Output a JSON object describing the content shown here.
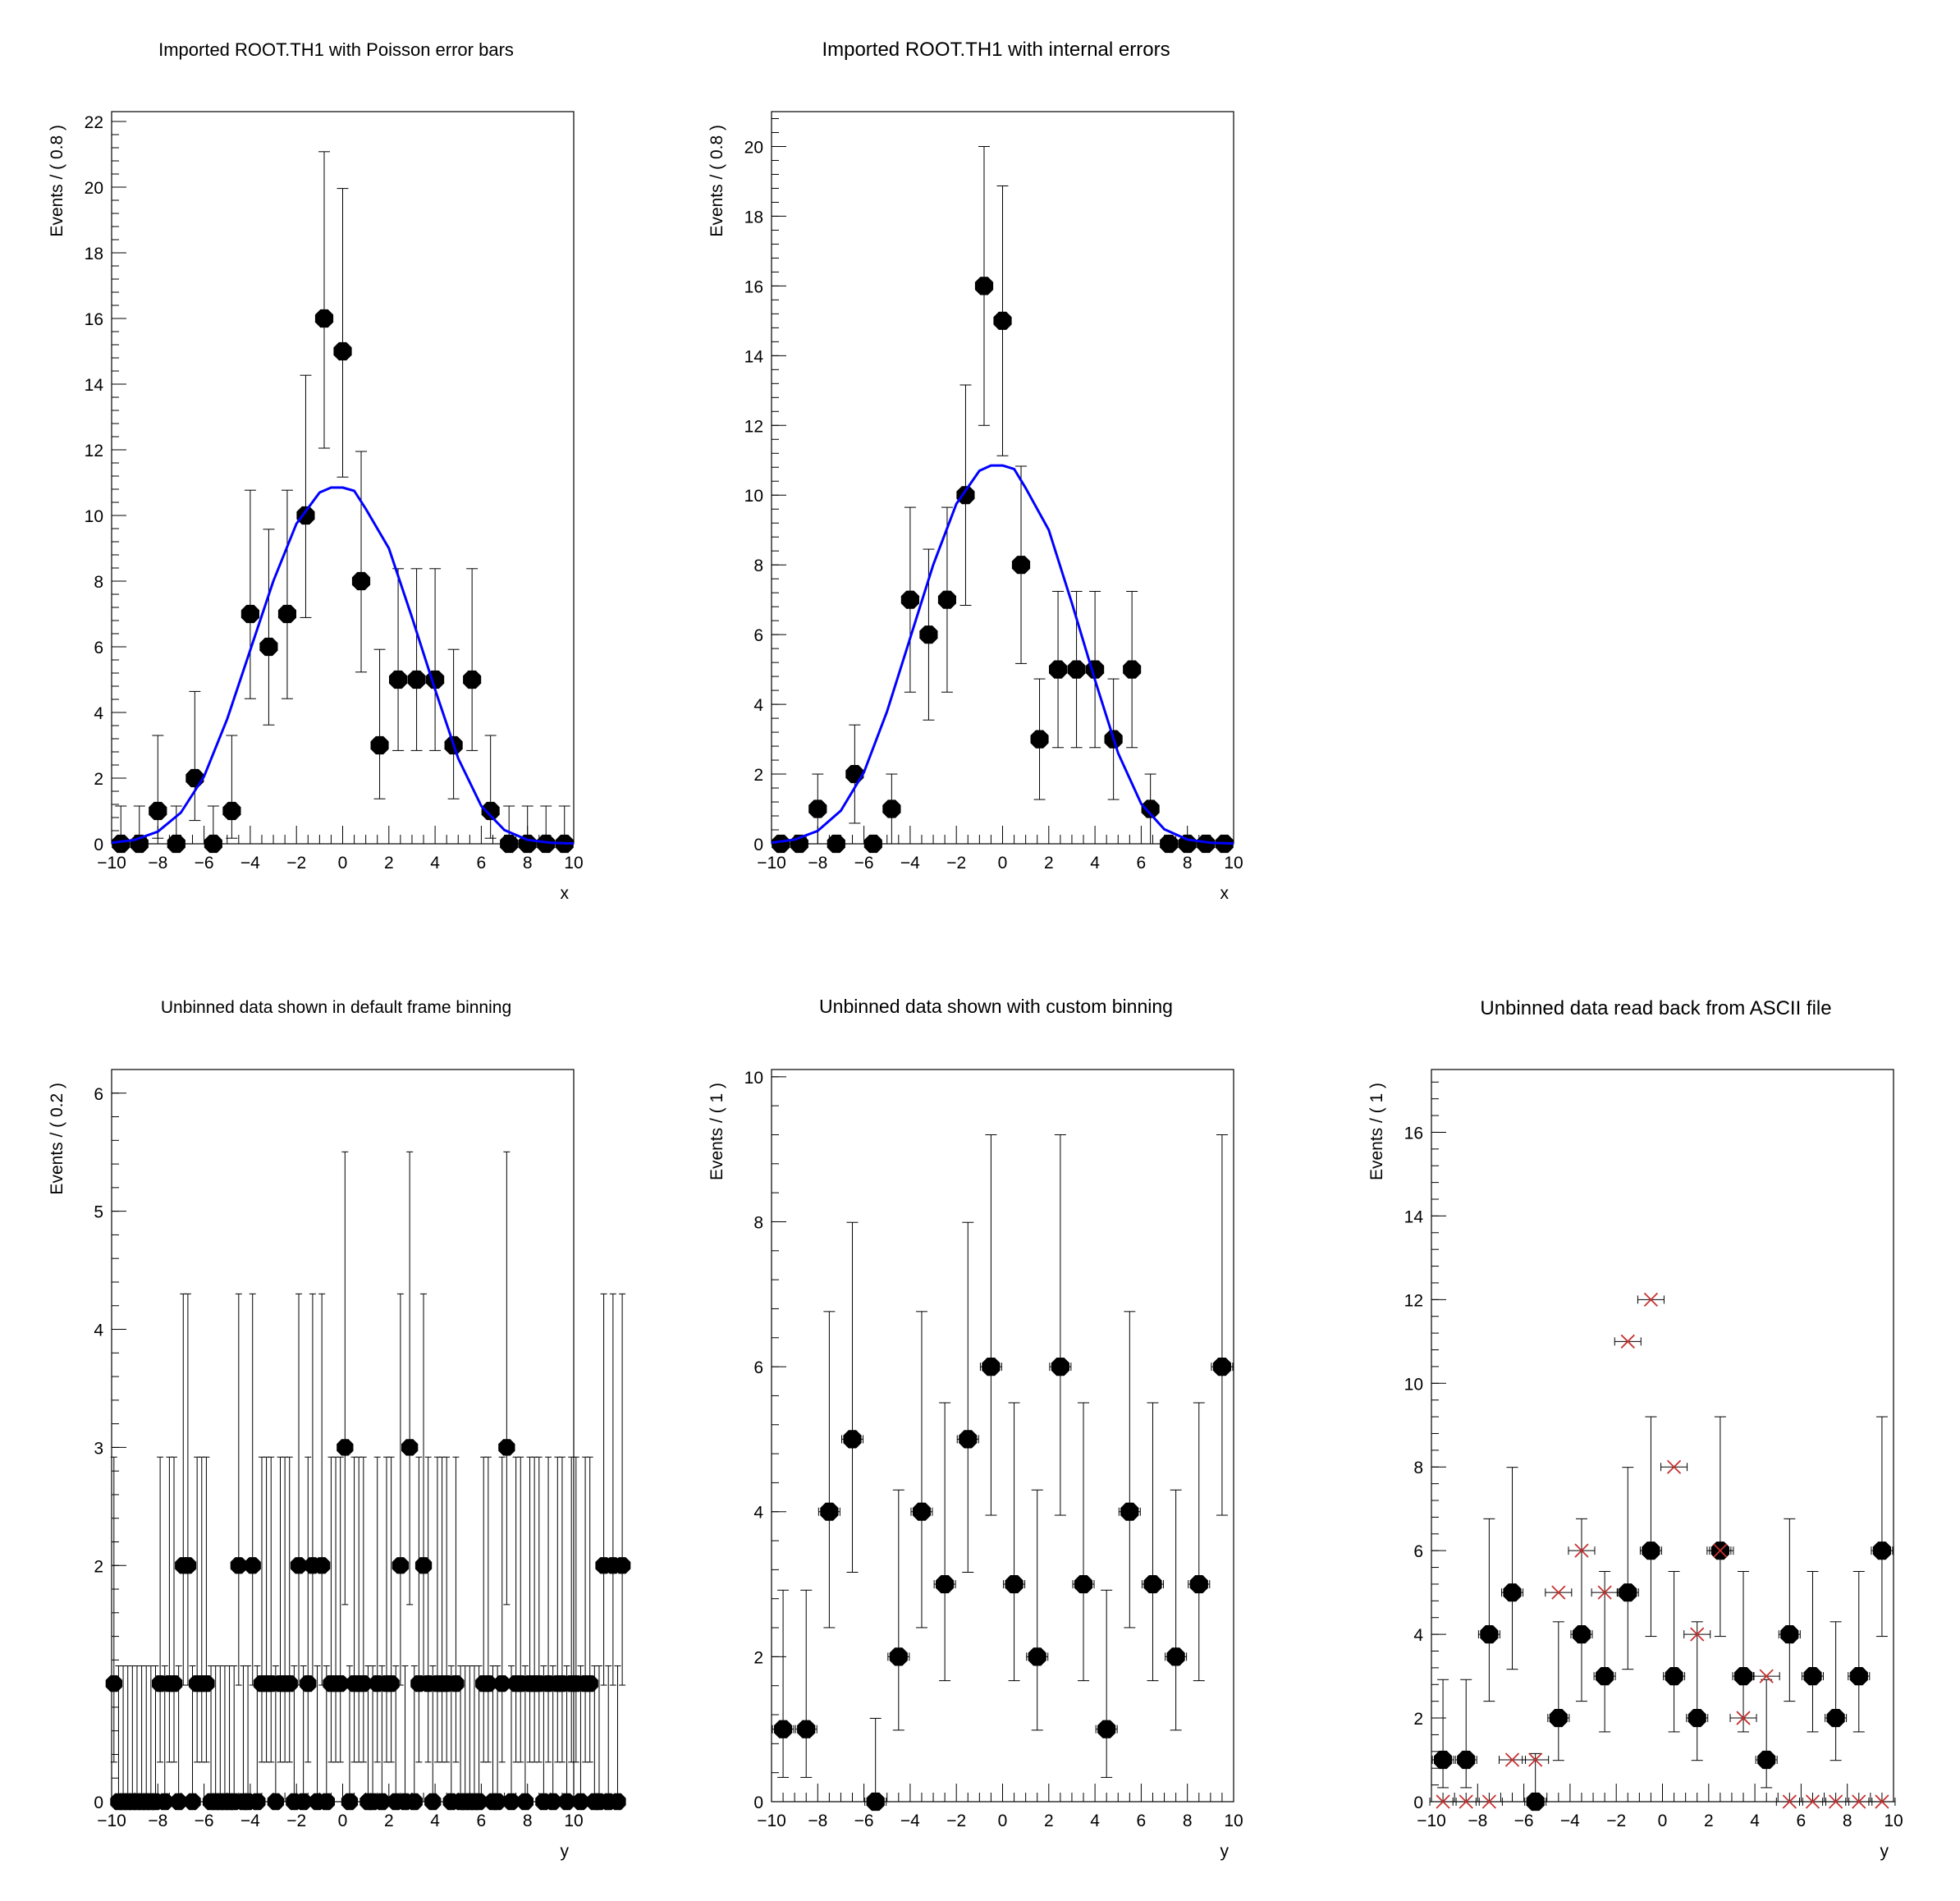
{
  "colors": {
    "curve": "#0000ff",
    "markers": "#000000",
    "cross_markers": "#c83232",
    "frame": "#000000"
  },
  "chart_data": [
    {
      "type": "scatter",
      "title": "Imported ROOT.TH1 with Poisson error bars",
      "xlabel": "x",
      "ylabel": "Events / ( 0.8 )",
      "xlim": [
        -10,
        10
      ],
      "ylim": [
        0,
        22.3
      ],
      "xticks": [
        -10,
        -8,
        -6,
        -4,
        -2,
        0,
        2,
        4,
        6,
        8,
        10
      ],
      "xtick_labels": [
        "−10",
        "−8",
        "−6",
        "−4",
        "−2",
        "0",
        "2",
        "4",
        "6",
        "8",
        "10"
      ],
      "yticks": [
        0,
        2,
        4,
        6,
        8,
        10,
        12,
        14,
        16,
        18,
        20,
        22
      ],
      "ytick_labels": [
        "0",
        "2",
        "4",
        "6",
        "8",
        "10",
        "12",
        "14",
        "16",
        "18",
        "20",
        "22"
      ],
      "series": [
        {
          "name": "data",
          "x": [
            -9.6,
            -8.8,
            -8.0,
            -7.2,
            -6.4,
            -5.6,
            -4.8,
            -4.0,
            -3.2,
            -2.4,
            -1.6,
            -0.8,
            0.0,
            0.8,
            1.6,
            2.4,
            3.2,
            4.0,
            4.8,
            5.6,
            6.4,
            7.2,
            8.0,
            8.8,
            9.6
          ],
          "y": [
            0,
            0,
            1,
            0,
            2,
            0,
            1,
            7,
            6,
            7,
            10,
            16,
            15,
            8,
            3,
            5,
            5,
            5,
            3,
            5,
            1,
            0,
            0,
            0,
            0
          ],
          "err_low": [
            0,
            0,
            0.83,
            0,
            1.29,
            0,
            0.83,
            2.58,
            2.38,
            2.58,
            3.11,
            3.95,
            3.83,
            2.77,
            1.63,
            2.16,
            2.16,
            2.16,
            1.63,
            2.16,
            0.83,
            0,
            0,
            0,
            0
          ],
          "err_high": [
            1.15,
            1.15,
            2.3,
            1.15,
            2.64,
            1.15,
            2.3,
            3.77,
            3.58,
            3.77,
            4.27,
            5.08,
            4.96,
            3.95,
            2.92,
            3.38,
            3.38,
            3.38,
            2.92,
            3.38,
            2.3,
            1.15,
            1.15,
            1.15,
            1.15
          ]
        },
        {
          "name": "gauss",
          "x": [
            -10,
            -9,
            -8,
            -7,
            -6,
            -5,
            -4,
            -3,
            -2,
            -1,
            -0.5,
            0,
            0.5,
            1,
            2,
            3,
            4,
            5,
            6,
            7,
            8,
            9,
            10
          ],
          "y": [
            0.03,
            0.12,
            0.37,
            0.95,
            2.05,
            3.8,
            5.9,
            8.0,
            9.75,
            10.7,
            10.85,
            10.85,
            10.75,
            10.2,
            9.0,
            6.9,
            4.7,
            2.6,
            1.15,
            0.42,
            0.12,
            0.03,
            0.01
          ]
        }
      ]
    },
    {
      "type": "scatter",
      "title": "Imported ROOT.TH1 with internal errors",
      "xlabel": "x",
      "ylabel": "Events / ( 0.8 )",
      "xlim": [
        -10,
        10
      ],
      "ylim": [
        0,
        21.0
      ],
      "xticks": [
        -10,
        -8,
        -6,
        -4,
        -2,
        0,
        2,
        4,
        6,
        8,
        10
      ],
      "xtick_labels": [
        "−10",
        "−8",
        "−6",
        "−4",
        "−2",
        "0",
        "2",
        "4",
        "6",
        "8",
        "10"
      ],
      "yticks": [
        0,
        2,
        4,
        6,
        8,
        10,
        12,
        14,
        16,
        18,
        20
      ],
      "ytick_labels": [
        "0",
        "2",
        "4",
        "6",
        "8",
        "10",
        "12",
        "14",
        "16",
        "18",
        "20"
      ],
      "series": [
        {
          "name": "data",
          "x": [
            -9.6,
            -8.8,
            -8.0,
            -7.2,
            -6.4,
            -5.6,
            -4.8,
            -4.0,
            -3.2,
            -2.4,
            -1.6,
            -0.8,
            0.0,
            0.8,
            1.6,
            2.4,
            3.2,
            4.0,
            4.8,
            5.6,
            6.4,
            7.2,
            8.0,
            8.8,
            9.6
          ],
          "y": [
            0,
            0,
            1,
            0,
            2,
            0,
            1,
            7,
            6,
            7,
            10,
            16,
            15,
            8,
            3,
            5,
            5,
            5,
            3,
            5,
            1,
            0,
            0,
            0,
            0
          ],
          "err_low": [
            0,
            0,
            1,
            0,
            1.41,
            0,
            1,
            2.65,
            2.45,
            2.65,
            3.16,
            4,
            3.87,
            2.83,
            1.73,
            2.24,
            2.24,
            2.24,
            1.73,
            2.24,
            1,
            0,
            0,
            0,
            0
          ],
          "err_high": [
            0,
            0,
            1,
            0,
            1.41,
            0,
            1,
            2.65,
            2.45,
            2.65,
            3.16,
            4,
            3.87,
            2.83,
            1.73,
            2.24,
            2.24,
            2.24,
            1.73,
            2.24,
            1,
            0,
            0,
            0,
            0
          ]
        },
        {
          "name": "gauss",
          "x": [
            -10,
            -9,
            -8,
            -7,
            -6,
            -5,
            -4,
            -3,
            -2,
            -1,
            -0.5,
            0,
            0.5,
            1,
            2,
            3,
            4,
            5,
            6,
            7,
            8,
            9,
            10
          ],
          "y": [
            0.03,
            0.12,
            0.37,
            0.95,
            2.05,
            3.8,
            5.9,
            8.0,
            9.75,
            10.7,
            10.85,
            10.85,
            10.75,
            10.2,
            9.0,
            6.9,
            4.7,
            2.6,
            1.15,
            0.42,
            0.12,
            0.03,
            0.01
          ]
        }
      ]
    },
    {
      "type": "scatter",
      "title": "Unbinned data shown in default frame binning",
      "xlabel": "y",
      "ylabel": "Events / ( 0.2 )",
      "xlim": [
        -10,
        10
      ],
      "ylim": [
        0,
        6.2
      ],
      "xticks": [
        -10,
        -8,
        -6,
        -4,
        -2,
        0,
        2,
        4,
        6,
        8,
        10
      ],
      "xtick_labels": [
        "−10",
        "−8",
        "−6",
        "−4",
        "−2",
        "0",
        "2",
        "4",
        "6",
        "8",
        "10"
      ],
      "yticks": [
        0,
        2,
        3,
        4,
        5,
        6
      ],
      "ytick_labels": [
        "0",
        "2",
        "3",
        "4",
        "5",
        "6"
      ],
      "series": [
        {
          "name": "data",
          "x0": -9.9,
          "dx": 0.2,
          "y": [
            1,
            0,
            0,
            0,
            0,
            0,
            0,
            0,
            0,
            0,
            1,
            0,
            1,
            1,
            0,
            2,
            2,
            0,
            1,
            1,
            1,
            0,
            0,
            0,
            0,
            0,
            0,
            2,
            0,
            0,
            2,
            0,
            1,
            1,
            1,
            0,
            1,
            1,
            1,
            0,
            2,
            0,
            1,
            2,
            0,
            2,
            0,
            1,
            1,
            1,
            3,
            0,
            1,
            1,
            1,
            0,
            0,
            1,
            0,
            1,
            1,
            0,
            2,
            0,
            3,
            0,
            1,
            2,
            1,
            0,
            1,
            1,
            1,
            0,
            1,
            0,
            0,
            0,
            0,
            0,
            1,
            1,
            0,
            0,
            1,
            3,
            0,
            1,
            1,
            0,
            1,
            1,
            1,
            0,
            1,
            0,
            1,
            1,
            0,
            1,
            1,
            0,
            1,
            1,
            0,
            0,
            2,
            0,
            2,
            0,
            2
          ]
        }
      ]
    },
    {
      "type": "scatter",
      "title": "Unbinned data shown with custom binning",
      "xlabel": "y",
      "ylabel": "Events / ( 1 )",
      "xlim": [
        -10,
        10
      ],
      "ylim": [
        0,
        10.1
      ],
      "xticks": [
        -10,
        -8,
        -6,
        -4,
        -2,
        0,
        2,
        4,
        6,
        8,
        10
      ],
      "xtick_labels": [
        "−10",
        "−8",
        "−6",
        "−4",
        "−2",
        "0",
        "2",
        "4",
        "6",
        "8",
        "10"
      ],
      "yticks": [
        0,
        2,
        4,
        6,
        8,
        10
      ],
      "ytick_labels": [
        "0",
        "2",
        "4",
        "6",
        "8",
        "10"
      ],
      "series": [
        {
          "name": "data",
          "x": [
            -9.5,
            -8.5,
            -7.5,
            -6.5,
            -5.5,
            -4.5,
            -3.5,
            -2.5,
            -1.5,
            -0.5,
            0.5,
            1.5,
            2.5,
            3.5,
            4.5,
            5.5,
            6.5,
            7.5,
            8.5,
            9.5
          ],
          "y": [
            1,
            1,
            4,
            5,
            0,
            2,
            4,
            3,
            5,
            6,
            3,
            2,
            6,
            3,
            1,
            4,
            3,
            2,
            3,
            6
          ]
        }
      ]
    },
    {
      "type": "scatter",
      "title": "Unbinned data read back from ASCII file",
      "xlabel": "y",
      "ylabel": "Events / ( 1 )",
      "xlim": [
        -10,
        10
      ],
      "ylim": [
        0,
        17.5
      ],
      "xticks": [
        -10,
        -8,
        -6,
        -4,
        -2,
        0,
        2,
        4,
        6,
        8,
        10
      ],
      "xtick_labels": [
        "−10",
        "−8",
        "−6",
        "−4",
        "−2",
        "0",
        "2",
        "4",
        "6",
        "8",
        "10"
      ],
      "yticks": [
        0,
        2,
        4,
        6,
        8,
        10,
        12,
        14,
        16
      ],
      "ytick_labels": [
        "0",
        "2",
        "4",
        "6",
        "8",
        "10",
        "12",
        "14",
        "16"
      ],
      "series": [
        {
          "name": "data",
          "x": [
            -9.5,
            -8.5,
            -7.5,
            -6.5,
            -5.5,
            -4.5,
            -3.5,
            -2.5,
            -1.5,
            -0.5,
            0.5,
            1.5,
            2.5,
            3.5,
            4.5,
            5.5,
            6.5,
            7.5,
            8.5,
            9.5
          ],
          "y": [
            1,
            1,
            4,
            5,
            0,
            2,
            4,
            3,
            5,
            6,
            3,
            2,
            6,
            3,
            1,
            4,
            3,
            2,
            3,
            6
          ]
        },
        {
          "name": "ascii",
          "x": [
            -9.5,
            -8.5,
            -7.5,
            -6.5,
            -5.5,
            -4.5,
            -3.5,
            -2.5,
            -1.5,
            -0.5,
            0.5,
            1.5,
            2.5,
            3.5,
            4.5,
            5.5,
            6.5,
            7.5,
            8.5,
            9.5
          ],
          "y": [
            0,
            0,
            0,
            1,
            1,
            5,
            6,
            5,
            11,
            12,
            8,
            4,
            6,
            2,
            3,
            0,
            0,
            0,
            0,
            0
          ]
        }
      ]
    }
  ]
}
